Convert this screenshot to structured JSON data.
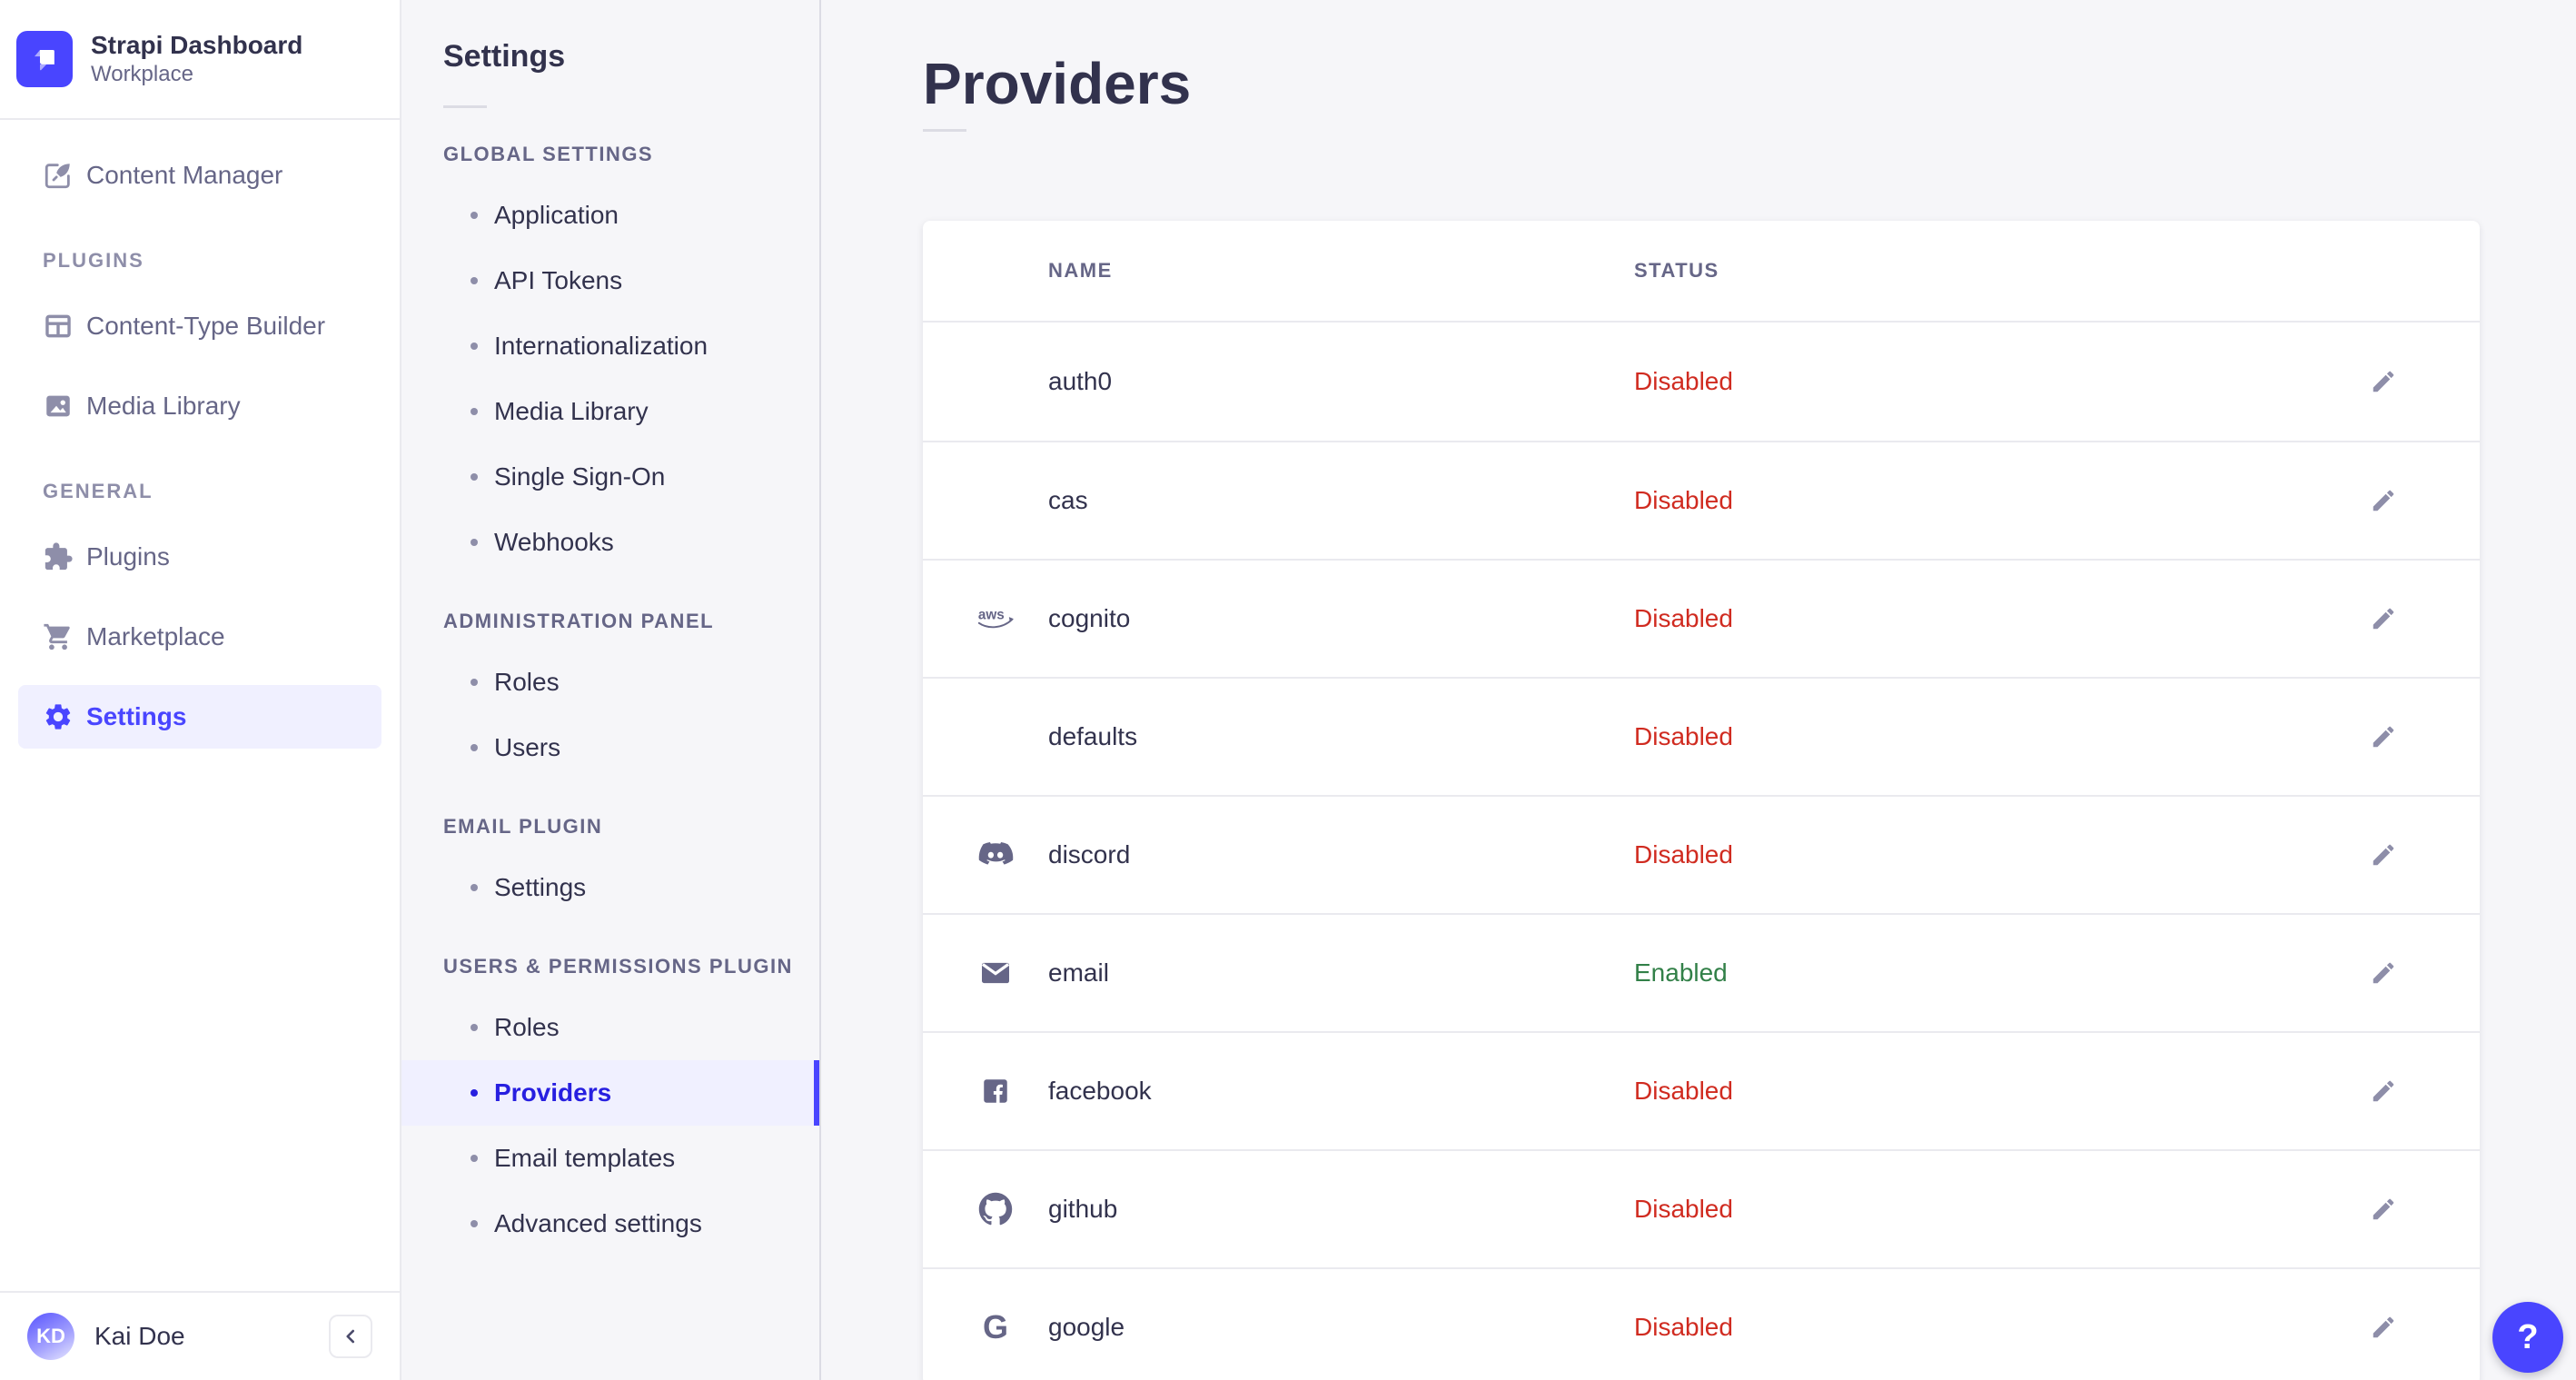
{
  "brand": {
    "title": "Strapi Dashboard",
    "subtitle": "Workplace"
  },
  "main_nav": {
    "content_manager": "Content Manager",
    "sections": [
      {
        "label": "PLUGINS",
        "items": [
          "Content-Type Builder",
          "Media Library"
        ]
      },
      {
        "label": "GENERAL",
        "items": [
          "Plugins",
          "Marketplace",
          "Settings"
        ]
      }
    ],
    "active_item": "Settings",
    "user_initials": "KD",
    "user_name": "Kai Doe"
  },
  "settings_nav": {
    "title": "Settings",
    "sections": [
      {
        "label": "GLOBAL SETTINGS",
        "items": [
          "Application",
          "API Tokens",
          "Internationalization",
          "Media Library",
          "Single Sign-On",
          "Webhooks"
        ]
      },
      {
        "label": "ADMINISTRATION PANEL",
        "items": [
          "Roles",
          "Users"
        ]
      },
      {
        "label": "EMAIL PLUGIN",
        "items": [
          "Settings"
        ]
      },
      {
        "label": "USERS & PERMISSIONS PLUGIN",
        "items": [
          "Roles",
          "Providers",
          "Email templates",
          "Advanced settings"
        ]
      }
    ],
    "active_item": "Providers"
  },
  "content": {
    "title": "Providers",
    "table": {
      "columns": [
        "NAME",
        "STATUS"
      ],
      "rows": [
        {
          "name": "auth0",
          "icon": null,
          "status": "Disabled"
        },
        {
          "name": "cas",
          "icon": null,
          "status": "Disabled"
        },
        {
          "name": "cognito",
          "icon": "aws",
          "status": "Disabled"
        },
        {
          "name": "defaults",
          "icon": null,
          "status": "Disabled"
        },
        {
          "name": "discord",
          "icon": "discord",
          "status": "Disabled"
        },
        {
          "name": "email",
          "icon": "envelope",
          "status": "Enabled"
        },
        {
          "name": "facebook",
          "icon": "facebook",
          "status": "Disabled"
        },
        {
          "name": "github",
          "icon": "github",
          "status": "Disabled"
        },
        {
          "name": "google",
          "icon": "google",
          "status": "Disabled"
        }
      ]
    }
  },
  "help": {
    "label": "?"
  },
  "colors": {
    "accent": "#4945FF",
    "accent_dark": "#271FE0",
    "active_bg": "#F0F0FF",
    "text_dark": "#32324D",
    "text_gray": "#666687",
    "text_muted": "#8E8EA9",
    "border": "#EAEAEF",
    "border_strong": "#DCDCE4",
    "bg": "#F6F6F9",
    "status_disabled": "#D02B20",
    "status_enabled": "#328048",
    "card_bg": "#FFFFFF"
  }
}
